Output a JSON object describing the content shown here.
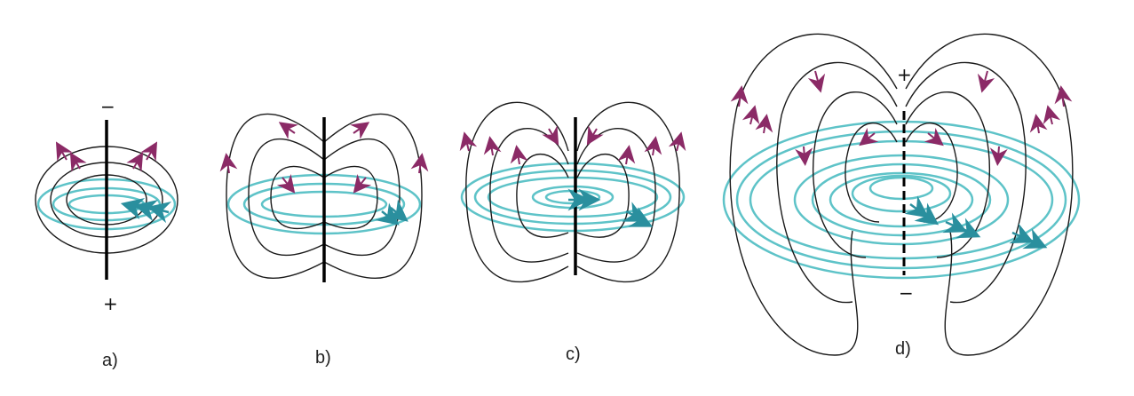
{
  "diagram": {
    "panels": [
      {
        "label": "a)",
        "top_sign": "−",
        "bottom_sign": "+"
      },
      {
        "label": "b)"
      },
      {
        "label": "c)"
      },
      {
        "label": "d)",
        "top_sign": "+",
        "bottom_sign": "−"
      }
    ],
    "colors": {
      "field_line": "#1a1a1a",
      "ring": "#5ec3c8",
      "arrow_magenta": "#8b2a66",
      "arrow_teal": "#2a8f9e",
      "axis": "#000000"
    }
  }
}
